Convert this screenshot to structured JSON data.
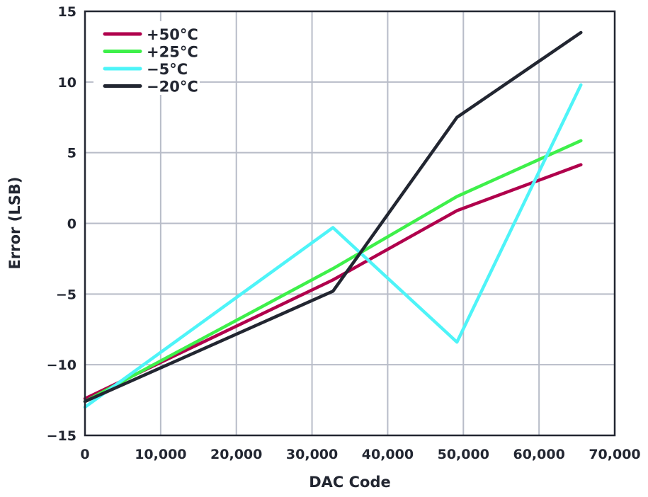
{
  "chart_data": {
    "type": "line",
    "title": "",
    "xlabel": "DAC Code",
    "ylabel": "Error (LSB)",
    "xlim": [
      0,
      70000
    ],
    "ylim": [
      -15,
      15
    ],
    "xticks": [
      0,
      10000,
      20000,
      30000,
      40000,
      50000,
      60000,
      70000
    ],
    "xtick_labels": [
      "0",
      "10,000",
      "20,000",
      "30,000",
      "40,000",
      "50,000",
      "60,000",
      "70,000"
    ],
    "yticks": [
      15,
      10,
      5,
      0,
      -5,
      -10,
      -15
    ],
    "ytick_labels": [
      "15",
      "10",
      "5",
      "0",
      "−5",
      "−10",
      "−15"
    ],
    "grid": true,
    "legend_position": "top-left",
    "x": [
      0,
      32768,
      49152,
      65535
    ],
    "series": [
      {
        "name": "+50°C",
        "color": "#b0004c",
        "values": [
          -12.4,
          -4.0,
          0.9,
          4.15
        ]
      },
      {
        "name": "+25°C",
        "color": "#3ef04a",
        "values": [
          -12.6,
          -3.2,
          1.9,
          5.85
        ]
      },
      {
        "name": "−5°C",
        "color": "#4ef4f8",
        "values": [
          -13.0,
          -0.3,
          -8.4,
          9.8
        ]
      },
      {
        "name": "−20°C",
        "color": "#222631",
        "values": [
          -12.6,
          -4.8,
          7.5,
          13.5
        ]
      }
    ]
  }
}
